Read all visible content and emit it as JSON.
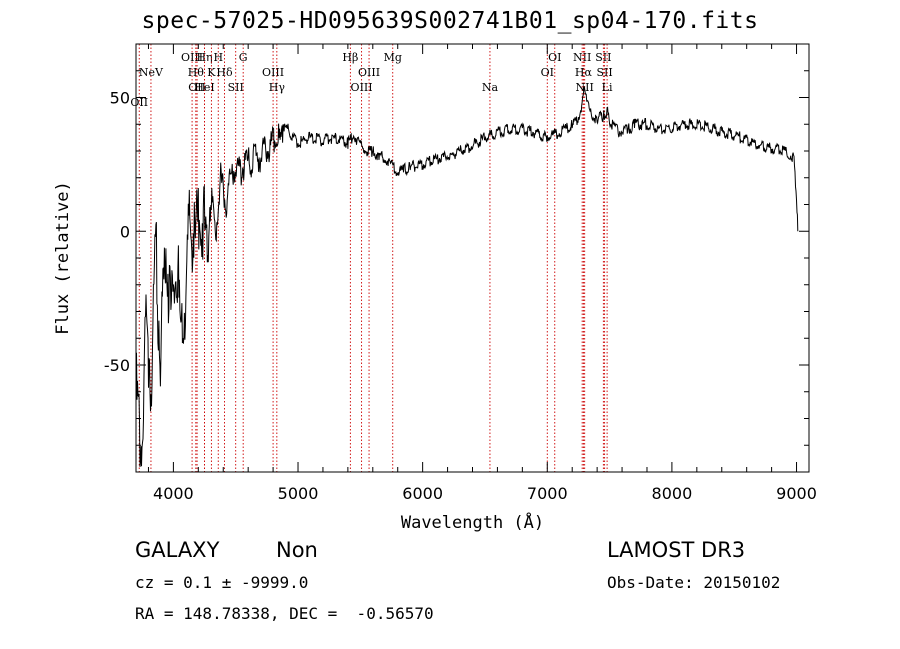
{
  "chart_data": {
    "type": "line",
    "title": "spec-57025-HD095639S002741B01_sp04-170.fits",
    "xlabel": "Wavelength (Å)",
    "ylabel": "Flux (relative)",
    "xlim": [
      3700,
      9100
    ],
    "ylim": [
      -90,
      70
    ],
    "xticks": [
      4000,
      5000,
      6000,
      7000,
      8000,
      9000
    ],
    "yticks": [
      -50,
      0,
      50
    ],
    "line_color": "#000000",
    "marker_color": "#cc0000",
    "series": [
      {
        "x": [
          3700,
          3740,
          3780,
          3820,
          3860,
          3900,
          3940,
          3980,
          4020,
          4060,
          4100,
          4140,
          4180,
          4220,
          4260,
          4300,
          4340,
          4380,
          4420,
          4460,
          4500,
          4540,
          4580,
          4620,
          4660,
          4700,
          4740,
          4780,
          4820,
          4860,
          4880,
          4920,
          4960,
          5000,
          5100,
          5200,
          5300,
          5400,
          5450,
          5500,
          5550,
          5600,
          5650,
          5700,
          5750,
          5800,
          5850,
          5900,
          6000,
          6100,
          6200,
          6300,
          6400,
          6500,
          6600,
          6700,
          6800,
          6900,
          7000,
          7050,
          7100,
          7150,
          7200,
          7250,
          7280,
          7300,
          7340,
          7400,
          7450,
          7480,
          7500,
          7550,
          7600,
          7650,
          7700,
          7800,
          7900,
          8000,
          8100,
          8200,
          8300,
          8400,
          8500,
          8600,
          8700,
          8800,
          8900,
          8950,
          8980,
          9000,
          9010
        ],
        "y": [
          -60,
          -80,
          -30,
          -55,
          -10,
          -45,
          0,
          -35,
          -5,
          -40,
          -20,
          5,
          -5,
          10,
          -5,
          15,
          0,
          20,
          10,
          20,
          25,
          22,
          27,
          25,
          28,
          28,
          30,
          32,
          35,
          34,
          40,
          38,
          35,
          33,
          35,
          34,
          35,
          33,
          36,
          32,
          30,
          30,
          28,
          27,
          25,
          22,
          23,
          24,
          25,
          27,
          28,
          30,
          32,
          35,
          37,
          38,
          38,
          37,
          35,
          36,
          37,
          38,
          40,
          42,
          48,
          55,
          44,
          42,
          43,
          45,
          41,
          38,
          37,
          38,
          40,
          40,
          38,
          39,
          40,
          40,
          39,
          37,
          36,
          34,
          32,
          31,
          30,
          29,
          27,
          12,
          0
        ]
      }
    ],
    "line_markers": [
      {
        "wl": 3726,
        "label": "OII",
        "row": 3
      },
      {
        "wl": 3820,
        "label": "NeV",
        "row": 1
      },
      {
        "wl": 4150,
        "label": "OIII",
        "row": 0
      },
      {
        "wl": 4180,
        "label": "Hθ",
        "row": 1
      },
      {
        "wl": 4190,
        "label": "OII",
        "row": 2
      },
      {
        "wl": 4250,
        "label": "Hη",
        "row": 0
      },
      {
        "wl": 4250,
        "label": "HeI",
        "row": 2
      },
      {
        "wl": 4305,
        "label": "K",
        "row": 1
      },
      {
        "wl": 4360,
        "label": "H",
        "row": 0
      },
      {
        "wl": 4410,
        "label": "Hδ",
        "row": 1
      },
      {
        "wl": 4500,
        "label": "SII",
        "row": 2
      },
      {
        "wl": 4560,
        "label": "G",
        "row": 0
      },
      {
        "wl": 4800,
        "label": "OIII",
        "row": 1
      },
      {
        "wl": 4830,
        "label": "Hγ",
        "row": 2
      },
      {
        "wl": 5420,
        "label": "Hβ",
        "row": 0
      },
      {
        "wl": 5510,
        "label": "OIII",
        "row": 2
      },
      {
        "wl": 5570,
        "label": "OIII",
        "row": 1
      },
      {
        "wl": 5760,
        "label": "Mg",
        "row": 0
      },
      {
        "wl": 6540,
        "label": "Na",
        "row": 2
      },
      {
        "wl": 7000,
        "label": "OI",
        "row": 1
      },
      {
        "wl": 7060,
        "label": "OI",
        "row": 0
      },
      {
        "wl": 7280,
        "label": "NII",
        "row": 0
      },
      {
        "wl": 7290,
        "label": "Hα",
        "row": 1
      },
      {
        "wl": 7300,
        "label": "NII",
        "row": 2
      },
      {
        "wl": 7450,
        "label": "SII",
        "row": 0
      },
      {
        "wl": 7460,
        "label": "SII",
        "row": 1
      },
      {
        "wl": 7480,
        "label": "Li",
        "row": 2
      }
    ]
  },
  "info": {
    "class": "GALAXY",
    "subclass": "Non",
    "survey": "LAMOST DR3",
    "cz": "cz = 0.1 ± -9999.0",
    "obs_date": "Obs-Date: 20150102",
    "radec": "RA = 148.78338, DEC =  -0.56570"
  }
}
